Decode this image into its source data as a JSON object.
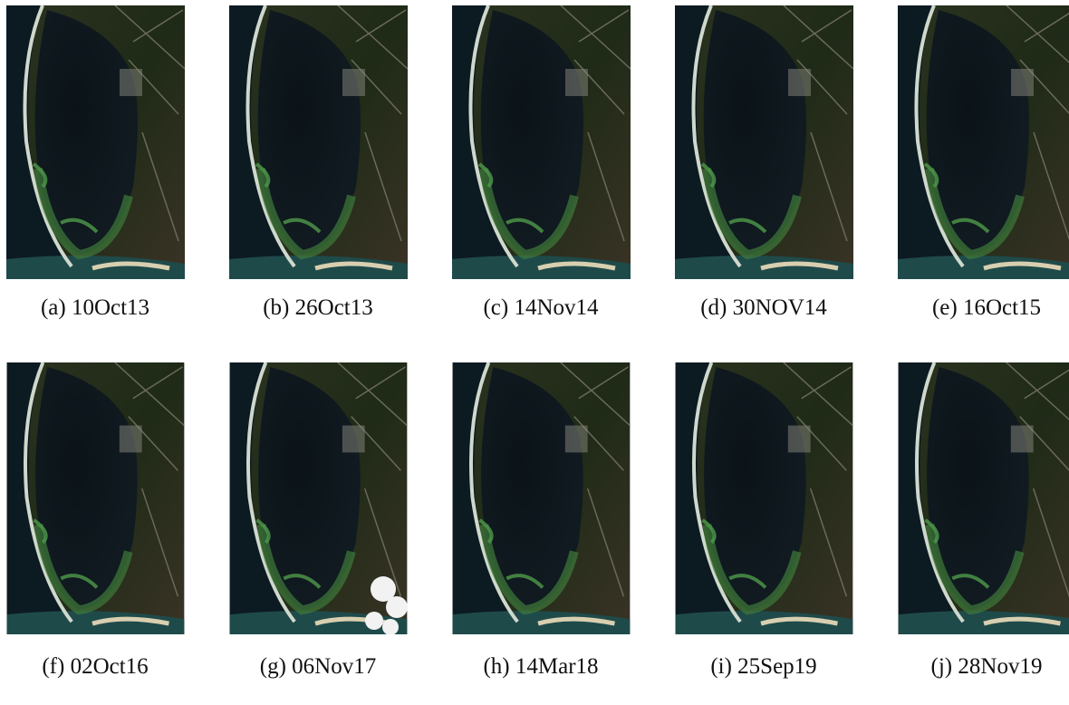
{
  "figure": {
    "panels": [
      {
        "label": "(a)",
        "date": "10Oct13"
      },
      {
        "label": "(b)",
        "date": "26Oct13"
      },
      {
        "label": "(c)",
        "date": "14Nov14"
      },
      {
        "label": "(d)",
        "date": "30NOV14"
      },
      {
        "label": "(e)",
        "date": "16Oct15"
      },
      {
        "label": "(f)",
        "date": "02Oct16"
      },
      {
        "label": "(g)",
        "date": "06Nov17"
      },
      {
        "label": "(h)",
        "date": "14Mar18"
      },
      {
        "label": "(i)",
        "date": "25Sep19"
      },
      {
        "label": "(j)",
        "date": "28Nov19"
      }
    ]
  }
}
